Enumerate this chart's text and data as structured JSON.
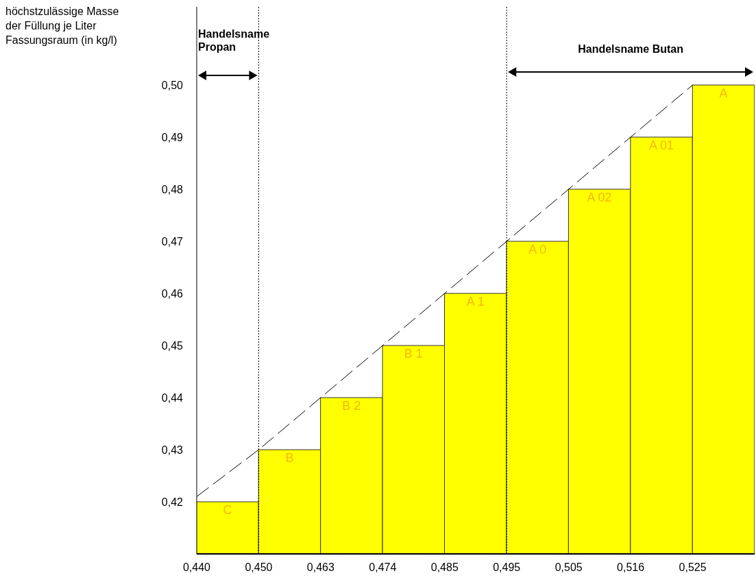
{
  "chart_data": {
    "type": "bar",
    "ylabel": "höchstzulässige Masse der Füllung je Liter Fassungsraum (in kg/l)",
    "categories": [
      "0,440",
      "0,450",
      "0,463",
      "0,474",
      "0,485",
      "0,495",
      "0,505",
      "0,516",
      "0,525"
    ],
    "series": [
      {
        "color": "#ffff00",
        "values": [
          0.42,
          0.43,
          0.44,
          0.45,
          0.46,
          0.47,
          0.48,
          0.49,
          0.5
        ],
        "value_labels": [
          "C",
          "B",
          "B 2",
          "B 1",
          "A 1",
          "A 0",
          "A 02",
          "A 01",
          "A"
        ]
      },
      {
        "type": "line",
        "color": "#000000",
        "line_style": "dashed",
        "values": [
          0.421,
          0.43,
          0.44,
          0.45,
          0.46,
          0.47,
          0.48,
          0.49,
          0.5
        ]
      }
    ],
    "ylim": [
      0.41,
      0.515
    ],
    "yticks": [
      {
        "value": 0.42,
        "label": "0,42"
      },
      {
        "value": 0.43,
        "label": "0,43"
      },
      {
        "value": 0.44,
        "label": "0,44"
      },
      {
        "value": 0.45,
        "label": "0,45"
      },
      {
        "value": 0.46,
        "label": "0,46"
      },
      {
        "value": 0.47,
        "label": "0,47"
      },
      {
        "value": 0.48,
        "label": "0,48"
      },
      {
        "value": 0.49,
        "label": "0,49"
      },
      {
        "value": 0.5,
        "label": "0,50"
      }
    ],
    "ref_lines": [
      {
        "axis": "x",
        "value": "0,450",
        "line_style": "dotted"
      },
      {
        "axis": "x",
        "value": "0,495",
        "line_style": "dotted"
      }
    ],
    "annotations": [
      "Handelsname Propan",
      "Handelsname Butan"
    ],
    "marker": "none"
  }
}
